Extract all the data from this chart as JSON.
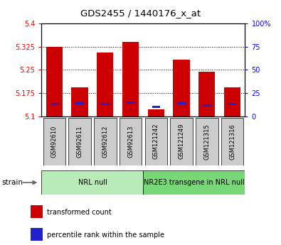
{
  "title": "GDS2455 / 1440176_x_at",
  "samples": [
    "GSM92610",
    "GSM92611",
    "GSM92612",
    "GSM92613",
    "GSM121242",
    "GSM121249",
    "GSM121315",
    "GSM121316"
  ],
  "transformed_counts": [
    5.323,
    5.193,
    5.305,
    5.34,
    5.122,
    5.283,
    5.243,
    5.193
  ],
  "percentile_ranks": [
    13,
    14,
    13,
    15,
    10,
    14,
    12,
    13
  ],
  "ylim_left": [
    5.1,
    5.4
  ],
  "ylim_right": [
    0,
    100
  ],
  "yticks_left": [
    5.1,
    5.175,
    5.25,
    5.325,
    5.4
  ],
  "yticks_right": [
    0,
    25,
    50,
    75,
    100
  ],
  "ytick_labels_left": [
    "5.1",
    "5.175",
    "5.25",
    "5.325",
    "5.4"
  ],
  "ytick_labels_right": [
    "0",
    "25",
    "50",
    "75",
    "100%"
  ],
  "groups": [
    {
      "label": "NRL null",
      "samples": [
        0,
        1,
        2,
        3
      ],
      "color": "#b8ebb8"
    },
    {
      "label": "NR2E3 transgene in NRL null",
      "samples": [
        4,
        5,
        6,
        7
      ],
      "color": "#78d878"
    }
  ],
  "bar_color_red": "#cc0000",
  "bar_color_blue": "#2222cc",
  "bar_width": 0.65,
  "bg_plot": "#ffffff",
  "bg_sample_labels": "#cccccc",
  "legend_items": [
    {
      "label": "transformed count",
      "color": "#cc0000"
    },
    {
      "label": "percentile rank within the sample",
      "color": "#2222cc"
    }
  ]
}
